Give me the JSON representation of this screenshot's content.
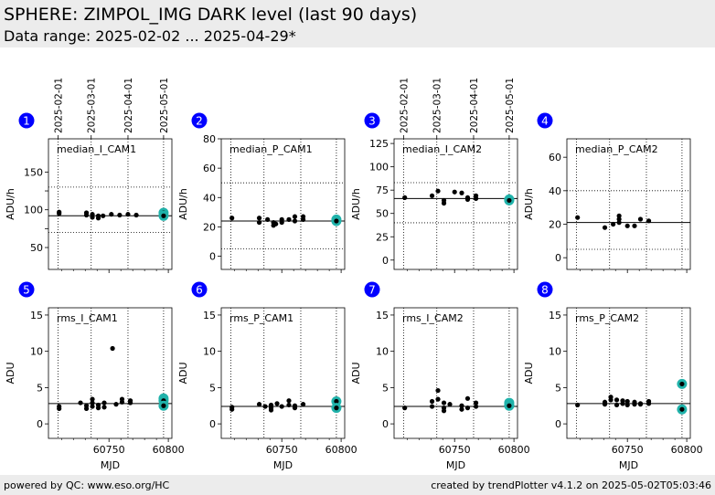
{
  "header": {
    "title": "SPHERE: ZIMPOL_IMG DARK level (last 90 days)",
    "subtitle": "Data range: 2025-02-02 ... 2025-04-29*"
  },
  "footer": {
    "left": "powered by QC: www.eso.org/HC",
    "right": "created by trendPlotter v4.1.2 on 2025-05-02T05:03:46"
  },
  "date_axis": {
    "labels": [
      "2025-02-01",
      "2025-03-01",
      "2025-04-01",
      "2025-05-01"
    ],
    "mjd": [
      60707,
      60735,
      60766,
      60796
    ]
  },
  "colors": {
    "point": "#000000",
    "highlight": "#20b2aa",
    "badge": "#0000ff"
  },
  "chart_data": [
    {
      "type": "scatter",
      "panel": "1",
      "title": "median_I_CAM1",
      "xlabel": "",
      "ylabel": "ADU/h",
      "xlim": [
        60699,
        60803
      ],
      "ylim": [
        21,
        194
      ],
      "yticks": [
        50,
        75,
        100,
        125,
        150
      ],
      "ytick_labels": [
        "50",
        "",
        "100",
        "",
        "150"
      ],
      "xticks": [
        60750,
        60800
      ],
      "show_xticklabels": false,
      "date_axis": true,
      "ref_line": 92,
      "limit_lines": [
        130,
        70
      ],
      "x": [
        60708,
        60708,
        60731,
        60731,
        60736,
        60736,
        60741,
        60741,
        60745,
        60752,
        60759,
        60766,
        60773,
        60796,
        60796
      ],
      "y": [
        97,
        95,
        96,
        93,
        94,
        90,
        92,
        89,
        92,
        94,
        93,
        94,
        93,
        96,
        92
      ],
      "highlight": [
        0,
        0,
        0,
        0,
        0,
        0,
        0,
        0,
        0,
        0,
        0,
        0,
        0,
        1,
        1
      ]
    },
    {
      "type": "scatter",
      "panel": "2",
      "title": "median_P_CAM1",
      "xlabel": "",
      "ylabel": "ADU/h",
      "xlim": [
        60699,
        60803
      ],
      "ylim": [
        -9,
        80
      ],
      "yticks": [
        0,
        20,
        40,
        60,
        80
      ],
      "ytick_labels": [
        "0",
        "20",
        "40",
        "60",
        "80"
      ],
      "xticks": [
        60750,
        60800
      ],
      "show_xticklabels": false,
      "date_axis": false,
      "ref_line": 24,
      "limit_lines": [
        50,
        5
      ],
      "x": [
        60708,
        60731,
        60731,
        60738,
        60743,
        60743,
        60745,
        60750,
        60750,
        60756,
        60761,
        60761,
        60768,
        60768,
        60796,
        60796
      ],
      "y": [
        26,
        26,
        23,
        25,
        23,
        21,
        22,
        25,
        23,
        25,
        27,
        24,
        27,
        25,
        25,
        24
      ],
      "highlight": [
        0,
        0,
        0,
        0,
        0,
        0,
        0,
        0,
        0,
        0,
        0,
        0,
        0,
        0,
        1,
        1
      ]
    },
    {
      "type": "scatter",
      "panel": "3",
      "title": "median_I_CAM2",
      "xlabel": "",
      "ylabel": "ADU/h",
      "xlim": [
        60699,
        60803
      ],
      "ylim": [
        -10,
        130
      ],
      "yticks": [
        0,
        25,
        50,
        75,
        100,
        125
      ],
      "ytick_labels": [
        "0",
        "25",
        "50",
        "75",
        "100",
        "125"
      ],
      "xticks": [
        60750,
        60800
      ],
      "show_xticklabels": false,
      "date_axis": true,
      "ref_line": 66,
      "limit_lines": [
        83,
        40
      ],
      "x": [
        60708,
        60731,
        60736,
        60741,
        60741,
        60750,
        60756,
        60761,
        60761,
        60768,
        60768,
        60796,
        60796
      ],
      "y": [
        67,
        69,
        74,
        64,
        61,
        73,
        72,
        67,
        65,
        69,
        66,
        65,
        64
      ],
      "highlight": [
        0,
        0,
        0,
        0,
        0,
        0,
        0,
        0,
        0,
        0,
        0,
        1,
        1
      ]
    },
    {
      "type": "scatter",
      "panel": "4",
      "title": "median_P_CAM2",
      "xlabel": "",
      "ylabel": "ADU/h",
      "xlim": [
        60699,
        60803
      ],
      "ylim": [
        -7,
        71
      ],
      "yticks": [
        0,
        20,
        40,
        60
      ],
      "ytick_labels": [
        "0",
        "20",
        "40",
        "60"
      ],
      "xticks": [
        60750,
        60800
      ],
      "show_xticklabels": false,
      "date_axis": false,
      "ref_line": 21,
      "limit_lines": [
        40,
        5
      ],
      "x": [
        60708,
        60731,
        60738,
        60743,
        60743,
        60743,
        60750,
        60756,
        60761,
        60768
      ],
      "y": [
        24,
        18,
        20,
        21,
        23,
        25,
        19,
        19,
        23,
        22
      ],
      "highlight": [
        0,
        0,
        0,
        0,
        0,
        0,
        0,
        0,
        0,
        0
      ]
    },
    {
      "type": "scatter",
      "panel": "5",
      "title": "rms_I_CAM1",
      "xlabel": "MJD",
      "ylabel": "ADU",
      "xlim": [
        60699,
        60803
      ],
      "ylim": [
        -2,
        16
      ],
      "yticks": [
        0,
        5,
        10,
        15
      ],
      "ytick_labels": [
        "0",
        "5",
        "10",
        "15"
      ],
      "xticks": [
        60750,
        60800
      ],
      "show_xticklabels": true,
      "date_axis": false,
      "ref_line": 2.8,
      "limit_lines": [],
      "x": [
        60708,
        60708,
        60726,
        60731,
        60731,
        60736,
        60736,
        60736,
        60741,
        60741,
        60746,
        60746,
        60753,
        60756,
        60761,
        60761,
        60768,
        60768,
        60796,
        60796,
        60796
      ],
      "y": [
        2.4,
        2.1,
        2.9,
        2.5,
        2.1,
        3.4,
        2.9,
        2.4,
        2.6,
        2.2,
        2.9,
        2.3,
        10.4,
        2.7,
        3.4,
        3.0,
        3.2,
        2.9,
        3.5,
        3.2,
        2.5
      ],
      "highlight": [
        0,
        0,
        0,
        0,
        0,
        0,
        0,
        0,
        0,
        0,
        0,
        0,
        0,
        0,
        0,
        0,
        0,
        0,
        1,
        1,
        1
      ]
    },
    {
      "type": "scatter",
      "panel": "6",
      "title": "rms_P_CAM1",
      "xlabel": "MJD",
      "ylabel": "ADU",
      "xlim": [
        60699,
        60803
      ],
      "ylim": [
        -2,
        16
      ],
      "yticks": [
        0,
        5,
        10,
        15
      ],
      "ytick_labels": [
        "0",
        "5",
        "10",
        "15"
      ],
      "xticks": [
        60750,
        60800
      ],
      "show_xticklabels": true,
      "date_axis": false,
      "ref_line": 2.4,
      "limit_lines": [],
      "x": [
        60708,
        60708,
        60731,
        60736,
        60741,
        60741,
        60741,
        60746,
        60750,
        60756,
        60756,
        60761,
        60761,
        60768,
        60796,
        60796
      ],
      "y": [
        2.3,
        2.0,
        2.7,
        2.4,
        2.6,
        2.2,
        1.9,
        2.8,
        2.4,
        3.2,
        2.6,
        2.5,
        2.2,
        2.7,
        3.1,
        2.2
      ],
      "highlight": [
        0,
        0,
        0,
        0,
        0,
        0,
        0,
        0,
        0,
        0,
        0,
        0,
        0,
        0,
        1,
        1
      ]
    },
    {
      "type": "scatter",
      "panel": "7",
      "title": "rms_I_CAM2",
      "xlabel": "MJD",
      "ylabel": "ADU",
      "xlim": [
        60699,
        60803
      ],
      "ylim": [
        -2,
        16
      ],
      "yticks": [
        0,
        5,
        10,
        15
      ],
      "ytick_labels": [
        "0",
        "5",
        "10",
        "15"
      ],
      "xticks": [
        60750,
        60800
      ],
      "show_xticklabels": true,
      "date_axis": false,
      "ref_line": 2.4,
      "limit_lines": [],
      "x": [
        60708,
        60731,
        60731,
        60736,
        60736,
        60741,
        60741,
        60741,
        60746,
        60756,
        60756,
        60761,
        60761,
        60768,
        60768,
        60796,
        60796,
        60796
      ],
      "y": [
        2.2,
        3.1,
        2.4,
        4.6,
        3.4,
        2.9,
        2.2,
        1.8,
        2.7,
        2.5,
        2.0,
        3.5,
        2.2,
        2.9,
        2.4,
        2.9,
        2.6,
        2.5
      ],
      "highlight": [
        0,
        0,
        0,
        0,
        0,
        0,
        0,
        0,
        0,
        0,
        0,
        0,
        0,
        0,
        0,
        1,
        1,
        1
      ]
    },
    {
      "type": "scatter",
      "panel": "8",
      "title": "rms_P_CAM2",
      "xlabel": "MJD",
      "ylabel": "ADU",
      "xlim": [
        60699,
        60803
      ],
      "ylim": [
        -2,
        16
      ],
      "yticks": [
        0,
        5,
        10,
        15
      ],
      "ytick_labels": [
        "0",
        "5",
        "10",
        "15"
      ],
      "xticks": [
        60750,
        60800
      ],
      "show_xticklabels": true,
      "date_axis": false,
      "ref_line": 2.8,
      "limit_lines": [],
      "x": [
        60708,
        60731,
        60731,
        60736,
        60736,
        60741,
        60741,
        60746,
        60746,
        60750,
        60750,
        60756,
        60756,
        60761,
        60761,
        60768,
        60768,
        60796,
        60796
      ],
      "y": [
        2.6,
        3.0,
        2.7,
        3.7,
        3.3,
        3.3,
        2.6,
        3.2,
        2.8,
        3.1,
        2.6,
        3.0,
        2.7,
        2.8,
        2.7,
        3.1,
        2.8,
        5.5,
        2.0
      ],
      "highlight": [
        0,
        0,
        0,
        0,
        0,
        0,
        0,
        0,
        0,
        0,
        0,
        0,
        0,
        0,
        0,
        0,
        0,
        1,
        1
      ]
    }
  ]
}
